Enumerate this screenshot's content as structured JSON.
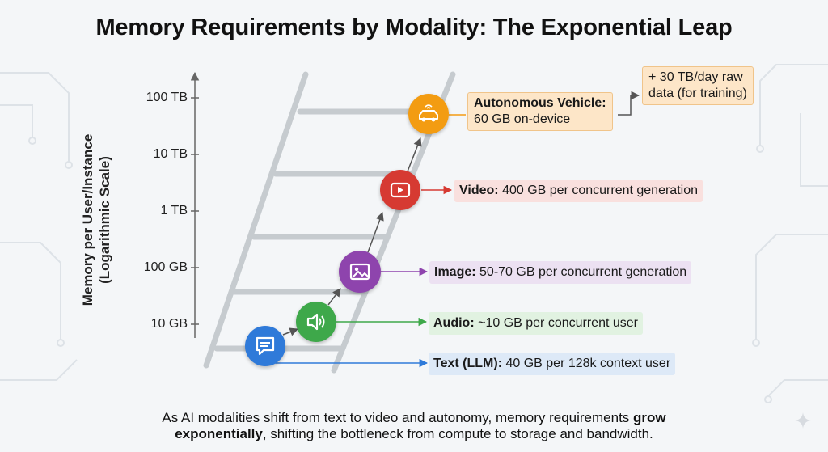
{
  "title": "Memory Requirements by Modality: The Exponential Leap",
  "y_axis": {
    "label_line1": "Memory per User/Instance",
    "label_line2": "(Logarithmic Scale)",
    "ticks": [
      "100 TB",
      "10 TB",
      "1 TB",
      "100 GB",
      "10 GB"
    ]
  },
  "modalities": [
    {
      "icon": "chat-bubble-icon",
      "color": "#2f7ad9",
      "name": "Text (LLM):",
      "detail": "40 GB per 128k context user"
    },
    {
      "icon": "speaker-icon",
      "color": "#3ea84a",
      "name": "Audio:",
      "detail": "~10 GB per concurrent user"
    },
    {
      "icon": "image-icon",
      "color": "#8e44ad",
      "name": "Image:",
      "detail": "50-70 GB per concurrent generation"
    },
    {
      "icon": "play-button-icon",
      "color": "#d63a32",
      "name": "Video:",
      "detail": "400 GB per concurrent generation"
    },
    {
      "icon": "car-icon",
      "color": "#f39c12",
      "name": "Autonomous Vehicle:",
      "detail": "60 GB on-device"
    }
  ],
  "training_note": {
    "line1": "+ 30 TB/day raw",
    "line2": "data (for training)"
  },
  "footer": {
    "part1": "As AI modalities shift from text to video and autonomy, memory requirements ",
    "bold1": "grow",
    "bold2": "exponentially",
    "part2": ", shifting the bottleneck from compute to storage and bandwidth."
  }
}
